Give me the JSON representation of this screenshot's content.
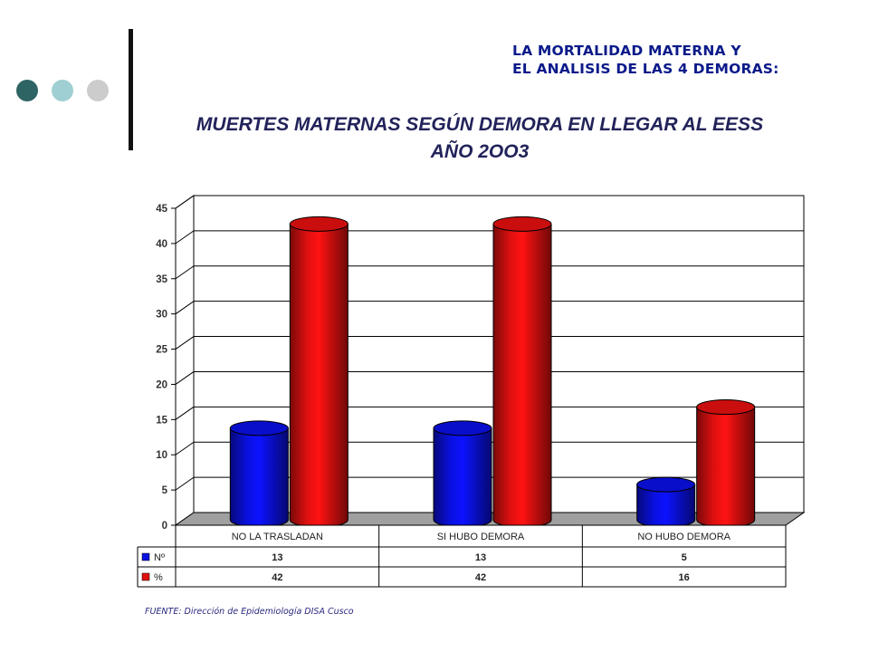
{
  "header": {
    "line1": "LA MORTALIDAD MATERNA Y",
    "line2": "EL ANALISIS DE LAS 4 DEMORAS:"
  },
  "title": {
    "line1": "MUERTES MATERNAS SEGÚN  DEMORA EN LLEGAR AL EESS",
    "line2": "AÑO 2OO3"
  },
  "source": "FUENTE: Dirección de Epidemiología DISA Cusco",
  "decor": {
    "dots": [
      "#2f6464",
      "#9fcfd2",
      "#cccccc"
    ]
  },
  "chart_data": {
    "type": "bar",
    "categories": [
      "NO LA TRASLADAN",
      "SI HUBO DEMORA",
      "NO HUBO DEMORA"
    ],
    "series": [
      {
        "name": "Nº",
        "values": [
          13,
          13,
          5
        ],
        "color": "#0a10e0"
      },
      {
        "name": "%",
        "values": [
          42,
          42,
          16
        ],
        "color": "#e01010"
      }
    ],
    "ylim": [
      0,
      45
    ],
    "yticks": [
      0,
      5,
      10,
      15,
      20,
      25,
      30,
      35,
      40,
      45
    ],
    "grid": true,
    "legend": "data-table",
    "title": "",
    "xlabel": "",
    "ylabel": ""
  }
}
